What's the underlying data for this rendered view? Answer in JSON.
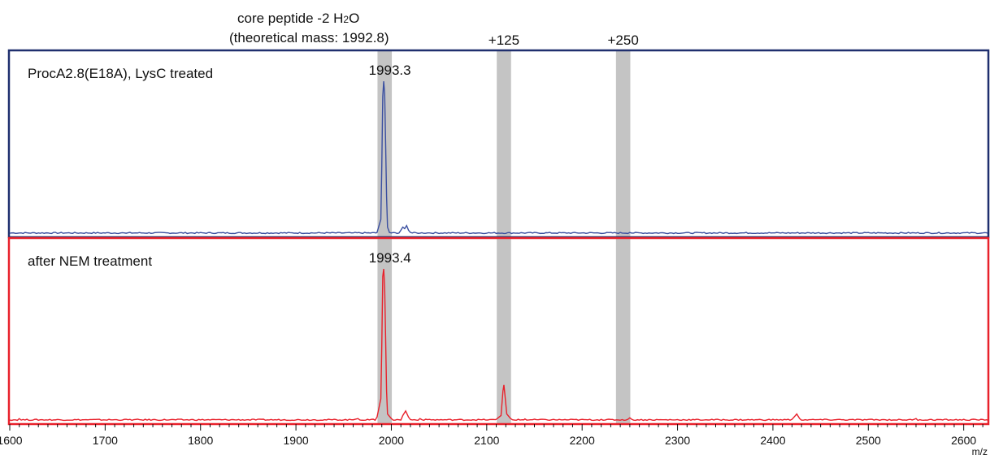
{
  "chart_data": {
    "type": "line",
    "xlabel": "m/z",
    "xlim": [
      1600,
      2625
    ],
    "x_ticks": [
      1600,
      1700,
      1800,
      1900,
      2000,
      2100,
      2200,
      2300,
      2400,
      2500,
      2600
    ],
    "top_annotation": {
      "line1_prefix": "core peptide -2 H",
      "line1_sub": "2",
      "line1_suffix": "O",
      "line2": "(theoretical mass: 1992.8)"
    },
    "highlight_bands": [
      {
        "center": 1993,
        "width": 15,
        "label": ""
      },
      {
        "center": 2118,
        "width": 15,
        "label": "+125"
      },
      {
        "center": 2243,
        "width": 15,
        "label": "+250"
      }
    ],
    "panels": [
      {
        "title": "ProcA2.8(E18A), LysC treated",
        "frame_color": "#1f2f6e",
        "line_color": "#3a4fa0",
        "ylim": [
          0,
          1
        ],
        "peak_label": "1993.3",
        "peak_label_x": 1993.3,
        "points": [
          [
            1600,
            0.01
          ],
          [
            1720,
            0.012
          ],
          [
            1722,
            0.01
          ],
          [
            1960,
            0.012
          ],
          [
            1985,
            0.015
          ],
          [
            1989,
            0.1
          ],
          [
            1990,
            0.45
          ],
          [
            1991,
            0.9
          ],
          [
            1992,
            1.0
          ],
          [
            1993,
            0.92
          ],
          [
            1994,
            0.6
          ],
          [
            1995,
            0.25
          ],
          [
            1996,
            0.05
          ],
          [
            1998,
            0.015
          ],
          [
            2010,
            0.03
          ],
          [
            2012,
            0.05
          ],
          [
            2014,
            0.04
          ],
          [
            2016,
            0.06
          ],
          [
            2018,
            0.03
          ],
          [
            2020,
            0.015
          ],
          [
            2030,
            0.01
          ],
          [
            2040,
            0.012
          ],
          [
            2100,
            0.01
          ],
          [
            2250,
            0.015
          ],
          [
            2400,
            0.012
          ],
          [
            2625,
            0.01
          ]
        ]
      },
      {
        "title": "after NEM treatment",
        "frame_color": "#e8212b",
        "line_color": "#e8212b",
        "peak_color": "#b5492e",
        "ylim": [
          0,
          1
        ],
        "peak_label": "1993.4",
        "peak_label_x": 1993.4,
        "points": [
          [
            1600,
            0.01
          ],
          [
            1610,
            0.02
          ],
          [
            1612,
            0.01
          ],
          [
            1720,
            0.015
          ],
          [
            1960,
            0.012
          ],
          [
            1965,
            0.02
          ],
          [
            1975,
            0.015
          ],
          [
            1985,
            0.03
          ],
          [
            1989,
            0.15
          ],
          [
            1990,
            0.5
          ],
          [
            1991,
            0.95
          ],
          [
            1992,
            1.0
          ],
          [
            1993,
            0.88
          ],
          [
            1994,
            0.55
          ],
          [
            1995,
            0.2
          ],
          [
            1996,
            0.05
          ],
          [
            2000,
            0.02
          ],
          [
            2012,
            0.04
          ],
          [
            2015,
            0.07
          ],
          [
            2018,
            0.03
          ],
          [
            2030,
            0.02
          ],
          [
            2040,
            0.015
          ],
          [
            2085,
            0.012
          ],
          [
            2110,
            0.015
          ],
          [
            2115,
            0.04
          ],
          [
            2117,
            0.2
          ],
          [
            2118,
            0.24
          ],
          [
            2119,
            0.18
          ],
          [
            2121,
            0.05
          ],
          [
            2125,
            0.02
          ],
          [
            2140,
            0.018
          ],
          [
            2160,
            0.015
          ],
          [
            2220,
            0.015
          ],
          [
            2250,
            0.025
          ],
          [
            2252,
            0.015
          ],
          [
            2330,
            0.012
          ],
          [
            2420,
            0.015
          ],
          [
            2425,
            0.05
          ],
          [
            2428,
            0.02
          ],
          [
            2450,
            0.015
          ],
          [
            2470,
            0.015
          ],
          [
            2550,
            0.02
          ],
          [
            2625,
            0.01
          ]
        ]
      }
    ]
  }
}
